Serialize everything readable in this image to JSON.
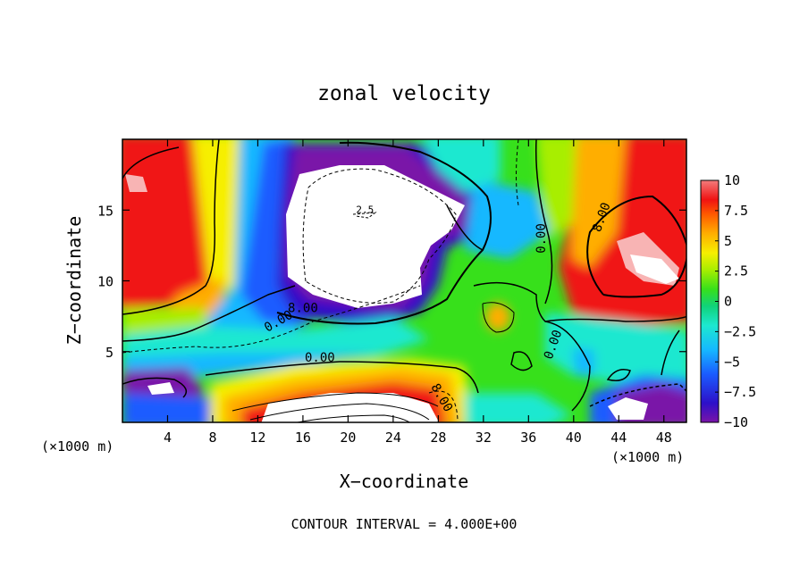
{
  "chart_data": {
    "type": "heatmap",
    "title": "zonal velocity",
    "xlabel": "X−coordinate",
    "ylabel": "Z−coordinate",
    "x_unit_left": "(×1000 m)",
    "x_unit_right": "(×1000 m)",
    "footer": "CONTOUR INTERVAL = 4.000E+00",
    "xlim": [
      0,
      50
    ],
    "ylim": [
      0,
      20
    ],
    "xticks": [
      "4",
      "8",
      "12",
      "16",
      "20",
      "24",
      "28",
      "32",
      "36",
      "40",
      "44",
      "48"
    ],
    "xtick_values": [
      4,
      8,
      12,
      16,
      20,
      24,
      28,
      32,
      36,
      40,
      44,
      48
    ],
    "yticks": [
      "5",
      "10",
      "15"
    ],
    "ytick_values": [
      5,
      10,
      15
    ],
    "colorbar": {
      "range": [
        -10,
        10
      ],
      "tick_labels": [
        "10",
        "7.5",
        "5",
        "2.5",
        "0",
        "−2.5",
        "−5",
        "−7.5",
        "−10"
      ],
      "tick_values": [
        10,
        7.5,
        5,
        2.5,
        0,
        -2.5,
        -5,
        -7.5,
        -10
      ],
      "colors": [
        "#7a14a8",
        "#2d10c9",
        "#1a5cff",
        "#16b8ff",
        "#1de8d0",
        "#10d27a",
        "#37e01b",
        "#a8ee00",
        "#f6ef00",
        "#ffae00",
        "#ff5a00",
        "#f01212",
        "#f27c7c"
      ]
    },
    "contour_labels": [
      {
        "text": "0.00",
        "x": 14,
        "y": 6.9,
        "angle": -30
      },
      {
        "text": "8.00",
        "x": 16,
        "y": 7.8,
        "angle": 0
      },
      {
        "text": "0.00",
        "x": 17.5,
        "y": 4.3,
        "angle": 0
      },
      {
        "text": "8.00",
        "x": 28,
        "y": 1.6,
        "angle": 60
      },
      {
        "text": "0.00",
        "x": 37.5,
        "y": 13,
        "angle": -90
      },
      {
        "text": "0.00",
        "x": 38.5,
        "y": 5.4,
        "angle": -70
      },
      {
        "text": "8.00",
        "x": 42.8,
        "y": 14.4,
        "angle": -70
      }
    ],
    "white_label": "2.5"
  }
}
